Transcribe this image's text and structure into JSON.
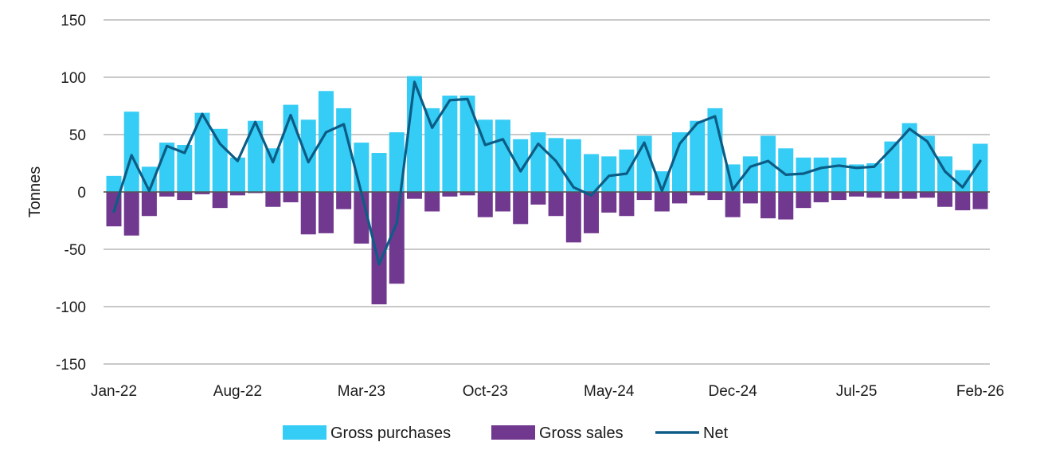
{
  "chart_data": {
    "type": "bar",
    "title": "",
    "ylabel": "Tonnes",
    "xlabel": "",
    "ylim": [
      -150,
      150
    ],
    "yticks": [
      150,
      100,
      50,
      0,
      -50,
      -100,
      -150
    ],
    "x_tick_labels": [
      "Jan-22",
      "Aug-22",
      "Mar-23",
      "Oct-23",
      "May-24",
      "Dec-24",
      "Jul-25",
      "Feb-26"
    ],
    "x_tick_every": 7,
    "grid": true,
    "legend_position": "bottom-center",
    "categories": [
      "Jan-22",
      "Feb-22",
      "Mar-22",
      "Apr-22",
      "May-22",
      "Jun-22",
      "Jul-22",
      "Aug-22",
      "Sep-22",
      "Oct-22",
      "Nov-22",
      "Dec-22",
      "Jan-23",
      "Feb-23",
      "Mar-23",
      "Apr-23",
      "May-23",
      "Jun-23",
      "Jul-23",
      "Aug-23",
      "Sep-23",
      "Oct-23",
      "Nov-23",
      "Dec-23",
      "Jan-24",
      "Feb-24",
      "Mar-24",
      "Apr-24",
      "May-24",
      "Jun-24",
      "Jul-24",
      "Aug-24",
      "Sep-24",
      "Oct-24",
      "Nov-24",
      "Dec-24",
      "Jan-25",
      "Feb-25",
      "Mar-25",
      "Apr-25",
      "May-25",
      "Jun-25",
      "Jul-25",
      "Aug-25",
      "Sep-25",
      "Oct-25",
      "Nov-25",
      "Dec-25",
      "Jan-26",
      "Feb-26"
    ],
    "series": [
      {
        "name": "Gross purchases",
        "kind": "bar",
        "color": "#35CCF5",
        "values": [
          14,
          70,
          22,
          43,
          41,
          69,
          55,
          30,
          62,
          38,
          76,
          63,
          88,
          73,
          43,
          34,
          52,
          101,
          73,
          84,
          84,
          63,
          63,
          46,
          52,
          47,
          46,
          33,
          31,
          37,
          49,
          18,
          52,
          62,
          73,
          24,
          31,
          49,
          38,
          30,
          30,
          30,
          24,
          25,
          44,
          60,
          49,
          31,
          19,
          42
        ]
      },
      {
        "name": "Gross sales",
        "kind": "bar",
        "color": "#71388F",
        "values": [
          -30,
          -38,
          -21,
          -4,
          -7,
          -2,
          -14,
          -3,
          -1,
          -13,
          -9,
          -37,
          -36,
          -15,
          -45,
          -98,
          -80,
          -6,
          -17,
          -4,
          -3,
          -22,
          -17,
          -28,
          -11,
          -21,
          -44,
          -36,
          -18,
          -21,
          -7,
          -17,
          -10,
          -3,
          -7,
          -22,
          -10,
          -23,
          -24,
          -14,
          -9,
          -7,
          -4,
          -5,
          -6,
          -6,
          -5,
          -13,
          -16,
          -15
        ]
      },
      {
        "name": "Net",
        "kind": "line",
        "color": "#0C5C85",
        "values": [
          -17,
          32,
          1,
          40,
          34,
          68,
          42,
          27,
          61,
          26,
          67,
          26,
          52,
          59,
          -1,
          -63,
          -27,
          96,
          56,
          80,
          81,
          41,
          46,
          18,
          42,
          27,
          4,
          -3,
          14,
          16,
          43,
          1,
          42,
          60,
          66,
          2,
          22,
          27,
          15,
          16,
          21,
          23,
          21,
          22,
          38,
          55,
          44,
          18,
          4,
          27
        ]
      }
    ]
  }
}
